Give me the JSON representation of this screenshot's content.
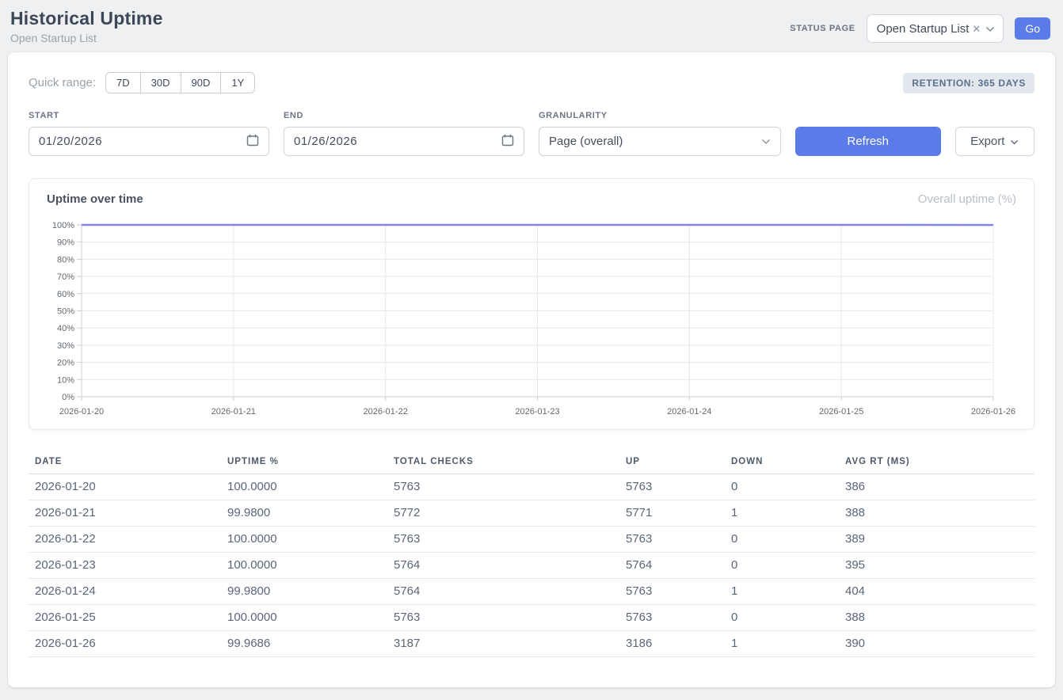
{
  "header": {
    "title": "Historical Uptime",
    "subtitle": "Open Startup List",
    "status_page_label": "STATUS PAGE",
    "status_page_value": "Open Startup List",
    "clear_glyph": "✕",
    "go_label": "Go"
  },
  "filters": {
    "quick_range_label": "Quick range:",
    "quick_ranges": [
      "7D",
      "30D",
      "90D",
      "1Y"
    ],
    "retention_badge": "RETENTION: 365 DAYS",
    "start_label": "START",
    "start_value": "01/20/2026",
    "end_label": "END",
    "end_value": "01/26/2026",
    "granularity_label": "GRANULARITY",
    "granularity_value": "Page (overall)",
    "refresh_label": "Refresh",
    "export_label": "Export"
  },
  "chart": {
    "title": "Uptime over time",
    "legend": "Overall uptime (%)"
  },
  "chart_data": {
    "type": "line",
    "title": "Uptime over time",
    "x": [
      "2026-01-20",
      "2026-01-21",
      "2026-01-22",
      "2026-01-23",
      "2026-01-24",
      "2026-01-25",
      "2026-01-26"
    ],
    "series": [
      {
        "name": "Overall uptime (%)",
        "values": [
          100.0,
          99.98,
          100.0,
          100.0,
          99.98,
          100.0,
          99.9686
        ]
      }
    ],
    "xlabel": "",
    "ylabel": "",
    "ylim": [
      0,
      100
    ],
    "y_tick_step": 10,
    "y_tick_suffix": "%",
    "grid": true,
    "legend_position": "top-right",
    "line_color": "#8186ee"
  },
  "table": {
    "columns": [
      "DATE",
      "UPTIME %",
      "TOTAL CHECKS",
      "UP",
      "DOWN",
      "AVG RT (MS)"
    ],
    "rows": [
      [
        "2026-01-20",
        "100.0000",
        "5763",
        "5763",
        "0",
        "386"
      ],
      [
        "2026-01-21",
        "99.9800",
        "5772",
        "5771",
        "1",
        "388"
      ],
      [
        "2026-01-22",
        "100.0000",
        "5763",
        "5763",
        "0",
        "389"
      ],
      [
        "2026-01-23",
        "100.0000",
        "5764",
        "5764",
        "0",
        "395"
      ],
      [
        "2026-01-24",
        "99.9800",
        "5764",
        "5763",
        "1",
        "404"
      ],
      [
        "2026-01-25",
        "100.0000",
        "5763",
        "5763",
        "0",
        "388"
      ],
      [
        "2026-01-26",
        "99.9686",
        "3187",
        "3186",
        "1",
        "390"
      ]
    ]
  },
  "colors": {
    "accent": "#5b7ce8",
    "line": "#8186ee",
    "badge_bg": "#e3e8ef"
  }
}
